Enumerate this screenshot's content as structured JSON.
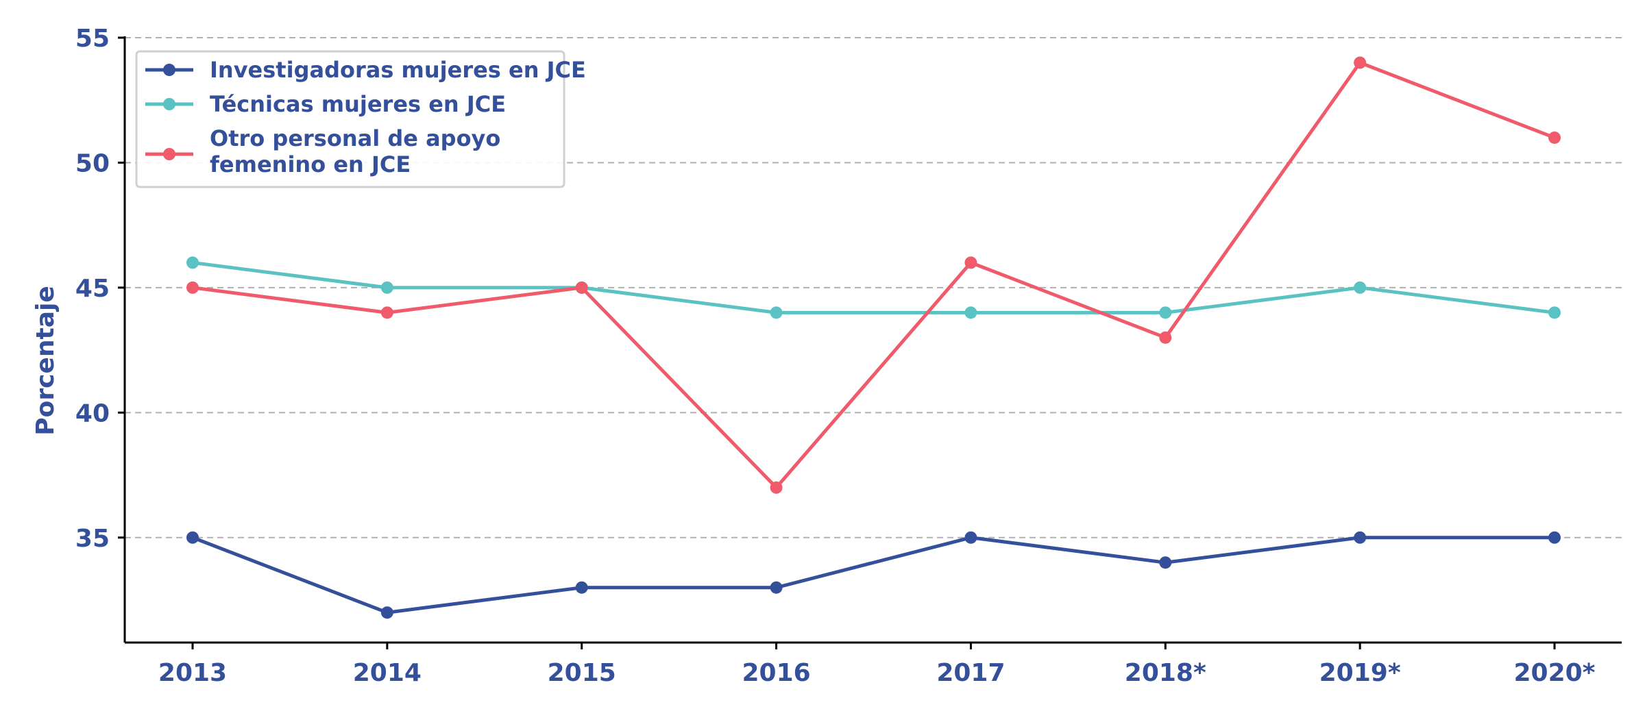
{
  "chart_data": {
    "type": "line",
    "title": "",
    "xlabel": "",
    "ylabel": "Porcentaje",
    "categories": [
      "2013",
      "2014",
      "2015",
      "2016",
      "2017",
      "2018*",
      "2019*",
      "2020*"
    ],
    "ylim": [
      30.8,
      55
    ],
    "yticks": [
      35,
      40,
      45,
      50,
      55
    ],
    "grid": "horizontal dashed",
    "legend_position": "top-left",
    "colors": {
      "text": "#34509a",
      "grid": "#b0b0b0",
      "axis": "#000000"
    },
    "series": [
      {
        "name": "Investigadoras mujeres en JCE",
        "color": "#34509a",
        "values": [
          35,
          32,
          33,
          33,
          35,
          34,
          35,
          35
        ]
      },
      {
        "name": "Técnicas mujeres en JCE",
        "color": "#5ac2c2",
        "values": [
          46,
          45,
          45,
          44,
          44,
          44,
          45,
          44
        ]
      },
      {
        "name": "Otro personal de apoyo femenino en JCE",
        "color": "#ef5b6b",
        "values": [
          45,
          44,
          45,
          37,
          46,
          43,
          54,
          51
        ]
      }
    ],
    "legend_lines": [
      [
        "Investigadoras mujeres en JCE"
      ],
      [
        "Técnicas mujeres en JCE"
      ],
      [
        "Otro personal de apoyo",
        "femenino en JCE"
      ]
    ]
  }
}
